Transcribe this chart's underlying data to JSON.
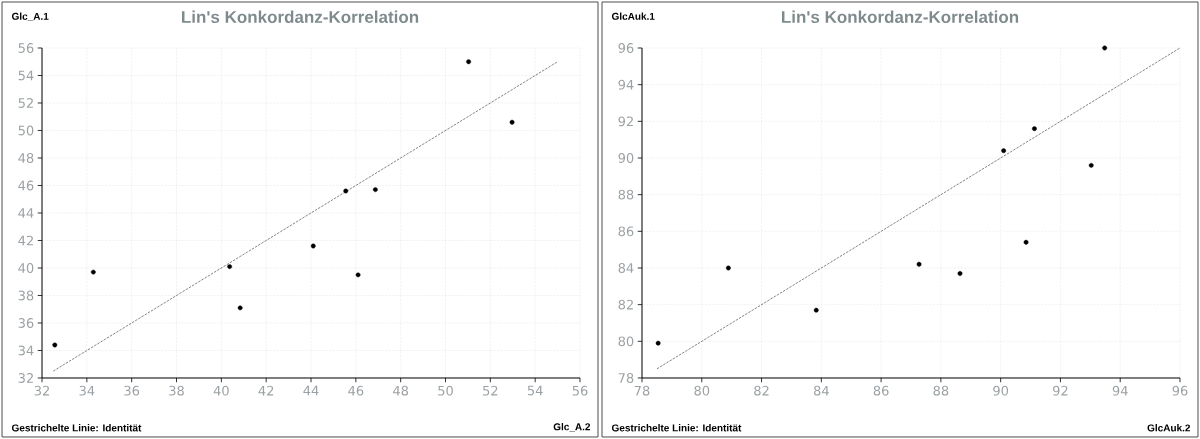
{
  "chart_data": [
    {
      "type": "scatter",
      "title": "Lin's Konkordanz-Korrelation",
      "xlabel": "Glc_A.2",
      "ylabel": "Glc_A.1",
      "annotations": [
        "Gestrichelte Linie: Identität"
      ],
      "xlim": [
        32,
        56
      ],
      "ylim": [
        32,
        56
      ],
      "xticks": [
        32,
        34,
        36,
        38,
        40,
        42,
        44,
        46,
        48,
        50,
        52,
        54,
        56
      ],
      "yticks": [
        32,
        34,
        36,
        38,
        40,
        42,
        44,
        46,
        48,
        50,
        52,
        54,
        56
      ],
      "grid": true,
      "series": [
        {
          "type": "scatter",
          "color": "#000000",
          "marker": "circle",
          "x": [
            32.57,
            34.29,
            40.37,
            40.84,
            44.1,
            45.55,
            46.1,
            46.87,
            51.03,
            52.97
          ],
          "values": [
            34.4,
            39.7,
            40.1,
            37.1,
            41.6,
            45.6,
            39.5,
            45.7,
            55.0,
            50.6
          ]
        },
        {
          "type": "line",
          "color": "#333333",
          "line_style": "dashed",
          "marker": "none",
          "x": [
            32.5,
            55
          ],
          "values": [
            32.5,
            55
          ]
        }
      ]
    },
    {
      "type": "scatter",
      "title": "Lin's Konkordanz-Korrelation",
      "xlabel": "GlcAuk.2",
      "ylabel": "GlcAuk.1",
      "annotations": [
        "Gestrichelte Linie: Identität"
      ],
      "xlim": [
        78,
        96
      ],
      "ylim": [
        78,
        96
      ],
      "xticks": [
        78,
        80,
        82,
        84,
        86,
        88,
        90,
        92,
        94,
        96
      ],
      "yticks": [
        78,
        80,
        82,
        84,
        86,
        88,
        90,
        92,
        94,
        96
      ],
      "grid": true,
      "series": [
        {
          "type": "scatter",
          "color": "#000000",
          "marker": "circle",
          "x": [
            78.54,
            80.89,
            83.83,
            87.27,
            88.64,
            90.1,
            90.85,
            91.13,
            93.03,
            93.48
          ],
          "values": [
            79.9,
            84.0,
            81.7,
            84.2,
            83.7,
            90.4,
            85.4,
            91.6,
            89.6,
            96.0
          ]
        },
        {
          "type": "line",
          "color": "#333333",
          "line_style": "dashed",
          "marker": "none",
          "x": [
            78.5,
            96
          ],
          "values": [
            78.5,
            96
          ]
        }
      ]
    }
  ]
}
